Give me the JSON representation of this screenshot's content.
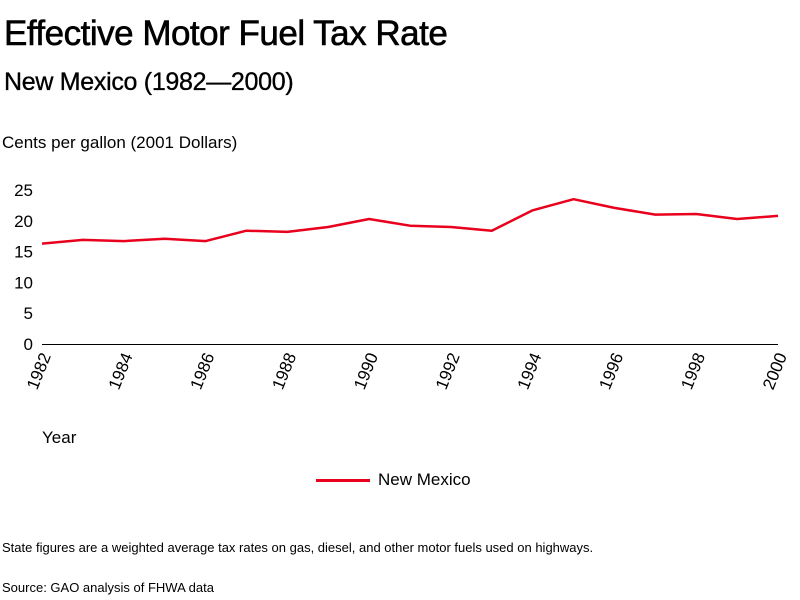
{
  "chart_data": {
    "type": "line",
    "title": "Effective Motor Fuel Tax Rate",
    "subtitle": "New Mexico (1982—2000)",
    "ylabel": "Cents per gallon (2001 Dollars)",
    "xlabel": "Year",
    "ylim": [
      0,
      25
    ],
    "yticks": [
      "0",
      "5",
      "10",
      "15",
      "20",
      "25"
    ],
    "xticks": [
      "1982",
      "1984",
      "1986",
      "1988",
      "1990",
      "1992",
      "1994",
      "1996",
      "1998",
      "2000"
    ],
    "x": [
      1982,
      1983,
      1984,
      1985,
      1986,
      1987,
      1988,
      1989,
      1990,
      1991,
      1992,
      1993,
      1994,
      1995,
      1996,
      1997,
      1998,
      1999,
      2000
    ],
    "series": [
      {
        "name": "New Mexico",
        "color": "#e8001c",
        "values": [
          16.3,
          16.9,
          16.7,
          17.1,
          16.7,
          18.4,
          18.2,
          19.0,
          20.3,
          19.2,
          19.0,
          18.4,
          21.7,
          23.5,
          22.1,
          21.0,
          21.1,
          20.3,
          20.8
        ]
      }
    ],
    "grid": false,
    "legend_position": "bottom-center"
  },
  "footnote": "State figures are a weighted average tax rates on gas, diesel, and other motor fuels used on highways.",
  "source": "Source: GAO analysis of FHWA data"
}
